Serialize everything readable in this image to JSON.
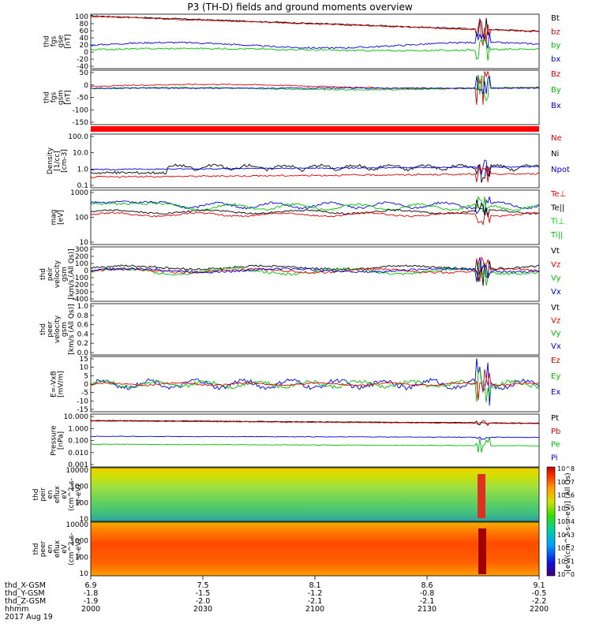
{
  "title": "P3 (TH-D) fields and ground moments overview",
  "panels": [
    {
      "id": "fgs_gse",
      "ylabel": [
        "thd",
        "fgs",
        "gse",
        "[nT]"
      ],
      "ylim": [
        -40,
        100
      ],
      "ticks": [
        "100",
        "80",
        "60",
        "40",
        "20",
        "0",
        "-20",
        "-40"
      ],
      "legend": [
        {
          "label": "Bt",
          "color": "#000000"
        },
        {
          "label": "bz",
          "color": "#e00000"
        },
        {
          "label": "by",
          "color": "#00c000"
        },
        {
          "label": "bx",
          "color": "#0000e0"
        }
      ]
    },
    {
      "id": "fgs_gsm",
      "ylabel": [
        "thd",
        "fgs",
        "gsm",
        "[nT]"
      ],
      "ylim": [
        -180,
        40
      ],
      "ticks": [
        "50",
        "0",
        "-50",
        "-100",
        "-150"
      ],
      "legend": [
        {
          "label": "Bz",
          "color": "#e00000"
        },
        {
          "label": "By",
          "color": "#00c000"
        },
        {
          "label": "Bx",
          "color": "#0000e0"
        }
      ]
    },
    {
      "id": "density",
      "ylabel": [
        "Density",
        "[1/cc]",
        "[cm-3]"
      ],
      "scale": "log",
      "ticks": [
        "100.0",
        "10.0",
        "1.0",
        "0.1"
      ],
      "legend": [
        {
          "label": "Ne",
          "color": "#e00000"
        },
        {
          "label": "Ni",
          "color": "#000000"
        },
        {
          "label": "Npot",
          "color": "#0000e0"
        }
      ]
    },
    {
      "id": "temperature",
      "ylabel": [
        "mag",
        "[eV]"
      ],
      "scale": "log",
      "ticks": [
        "1000",
        "100",
        "10"
      ],
      "legend": [
        {
          "label": "Te⊥",
          "color": "#e00000"
        },
        {
          "label": "Te||",
          "color": "#000000"
        },
        {
          "label": "Ti⊥",
          "color": "#00c000"
        },
        {
          "label": "Ti||",
          "color": "#00c000"
        }
      ]
    },
    {
      "id": "ion_velocity",
      "ylabel": [
        "thd",
        "peir",
        "velocity",
        "gsm",
        "[km/s (All Qs)]"
      ],
      "ylim": [
        -400,
        300
      ],
      "ticks": [
        "300",
        "200",
        "100",
        "0",
        "-100",
        "-200",
        "-300",
        "-400"
      ],
      "legend": [
        {
          "label": "Vt",
          "color": "#000000"
        },
        {
          "label": "Vz",
          "color": "#e00000"
        },
        {
          "label": "Vy",
          "color": "#00c000"
        },
        {
          "label": "Vx",
          "color": "#0000e0"
        }
      ]
    },
    {
      "id": "electron_velocity",
      "ylabel": [
        "thd",
        "peer",
        "velocity",
        "gsm",
        "[km/s (All Qs)]"
      ],
      "ylim": [
        0,
        1
      ],
      "ticks": [
        "1.0",
        "0.8",
        "0.6",
        "0.4",
        "0.2",
        "0.0"
      ],
      "legend": [
        {
          "label": "Vt",
          "color": "#000000"
        },
        {
          "label": "Vz",
          "color": "#e00000"
        },
        {
          "label": "Vy",
          "color": "#00c000"
        },
        {
          "label": "Vx",
          "color": "#0000e0"
        }
      ]
    },
    {
      "id": "efield",
      "ylabel": [
        "E=-VxB",
        "[mV/m]"
      ],
      "ylim": [
        -15,
        15
      ],
      "ticks": [
        "15",
        "10",
        "5",
        "0",
        "-5",
        "-10",
        "-15"
      ],
      "legend": [
        {
          "label": "Ez",
          "color": "#e00000"
        },
        {
          "label": "Ey",
          "color": "#00c000"
        },
        {
          "label": "Ex",
          "color": "#0000e0"
        }
      ]
    },
    {
      "id": "pressure",
      "ylabel": [
        "Pressure",
        "[nPa]"
      ],
      "scale": "log",
      "ticks": [
        "10.000",
        "1.000",
        "0.100",
        "0.010",
        "0.001"
      ],
      "legend": [
        {
          "label": "Pt",
          "color": "#000000"
        },
        {
          "label": "Pb",
          "color": "#e00000"
        },
        {
          "label": "Pe",
          "color": "#00c000"
        },
        {
          "label": "Pi",
          "color": "#0000e0"
        }
      ]
    },
    {
      "id": "ion_spec",
      "ylabel": [
        "thd",
        "peir",
        "en",
        "eflux",
        "eV",
        "(cm^2-s-",
        "sr-eV)"
      ],
      "scale": "log",
      "ticks": [
        "10000",
        "1000",
        "100",
        "10"
      ]
    },
    {
      "id": "electron_spec",
      "ylabel": [
        "thd",
        "peer",
        "en",
        "eflux",
        "eV",
        "(cm^2-s-",
        "sr-eV)"
      ],
      "scale": "log",
      "ticks": [
        "10000",
        "1000",
        "100",
        "10"
      ]
    }
  ],
  "colorbar": {
    "label": "[eV/(cm^2-s-sr-eV)] (All Qs)",
    "ticks": [
      "10^8",
      "10^7",
      "10^6",
      "10^5",
      "10^4",
      "10^3",
      "10^2",
      "10^1",
      "10^0"
    ]
  },
  "xaxis": {
    "row_labels": [
      "thd_X-GSM",
      "thd_Y-GSM",
      "thd_Z-GSM",
      "hhmm",
      "2017 Aug 19"
    ],
    "columns": [
      [
        "6.9",
        "-1.8",
        "-1.9",
        "2000"
      ],
      [
        "7.5",
        "-1.5",
        "-2.0",
        "2030"
      ],
      [
        "8.1",
        "-1.2",
        "-2.1",
        "2100"
      ],
      [
        "8.6",
        "-0.8",
        "-2.1",
        "2130"
      ],
      [
        "9.1",
        "-0.5",
        "-2.2",
        "2200"
      ]
    ]
  },
  "chart_data": {
    "type": "line",
    "title": "P3 (TH-D) fields and ground moments overview",
    "time": {
      "hhmm": [
        "2000",
        "2030",
        "2100",
        "2130",
        "2200"
      ],
      "date": "2017 Aug 19"
    },
    "series": [
      {
        "panel": "fgs_gse",
        "name": "Bt",
        "unit": "nT",
        "values": [
          100,
          98,
          92,
          85,
          75,
          70,
          68
        ]
      },
      {
        "panel": "fgs_gse",
        "name": "bz",
        "unit": "nT",
        "values": [
          99,
          97,
          91,
          84,
          74,
          69,
          67
        ]
      },
      {
        "panel": "fgs_gse",
        "name": "by",
        "unit": "nT",
        "values": [
          5,
          6,
          8,
          10,
          12,
          10,
          8
        ]
      },
      {
        "panel": "fgs_gse",
        "name": "bx",
        "unit": "nT",
        "values": [
          18,
          16,
          14,
          15,
          20,
          15,
          12
        ]
      },
      {
        "panel": "density",
        "name": "Ni",
        "unit": "cm-3",
        "values": [
          0.5,
          0.6,
          1.0,
          1.5,
          2.0,
          1.0,
          1.2
        ]
      },
      {
        "panel": "density",
        "name": "Npot",
        "unit": "cm-3",
        "values": [
          1.0,
          1.0,
          1.0,
          1.1,
          1.2,
          1.2,
          1.3
        ]
      },
      {
        "panel": "density",
        "name": "Ne",
        "unit": "cm-3",
        "values": [
          0.4,
          0.5,
          0.6,
          0.6,
          0.7,
          0.6,
          0.6
        ]
      },
      {
        "panel": "pressure",
        "name": "Pt",
        "unit": "nPa",
        "values": [
          3.0,
          2.8,
          2.5,
          2.2,
          2.0,
          1.8,
          1.7
        ]
      },
      {
        "panel": "pressure",
        "name": "Pi",
        "unit": "nPa",
        "values": [
          0.2,
          0.18,
          0.17,
          0.16,
          0.15,
          0.14,
          0.13
        ]
      },
      {
        "panel": "pressure",
        "name": "Pe",
        "unit": "nPa",
        "values": [
          0.05,
          0.04,
          0.03,
          0.03,
          0.03,
          0.03,
          0.02
        ]
      }
    ]
  }
}
